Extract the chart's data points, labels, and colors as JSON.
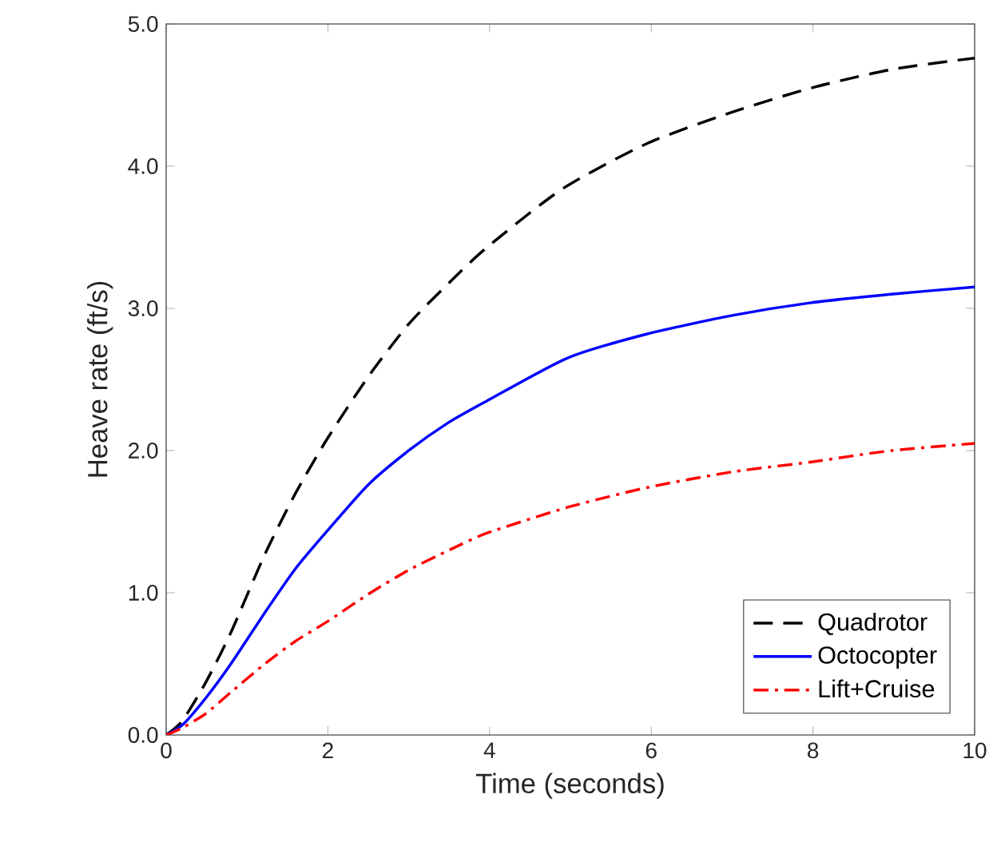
{
  "chart_data": {
    "type": "line",
    "xlabel": "Time (seconds)",
    "ylabel": "Heave rate (ft/s)",
    "xlim": [
      0,
      10
    ],
    "ylim": [
      0,
      5
    ],
    "xticks": [
      0,
      2,
      4,
      6,
      8,
      10
    ],
    "yticks": [
      {
        "value": 0,
        "label": "0.0"
      },
      {
        "value": 1,
        "label": "1.0"
      },
      {
        "value": 2,
        "label": "2.0"
      },
      {
        "value": 3,
        "label": "3.0"
      },
      {
        "value": 4,
        "label": "4.0"
      },
      {
        "value": 5,
        "label": "5.0"
      }
    ],
    "grid": false,
    "legend": "bottom right",
    "series": [
      {
        "name": "Quadrotor",
        "color": "#000000",
        "line_style": "dashed",
        "x": [
          0,
          0.2,
          0.49,
          0.8,
          1.22,
          1.6,
          2.0,
          2.5,
          3.0,
          3.5,
          3.97,
          4.9,
          5.95,
          7.0,
          7.98,
          8.97,
          10
        ],
        "values": [
          0,
          0.1,
          0.37,
          0.72,
          1.27,
          1.7,
          2.09,
          2.52,
          2.89,
          3.18,
          3.43,
          3.84,
          4.16,
          4.38,
          4.55,
          4.68,
          4.76
        ]
      },
      {
        "name": "Octocopter",
        "color": "#0000ff",
        "line_style": "solid",
        "x": [
          0,
          0.2,
          0.49,
          0.8,
          1.22,
          1.6,
          2.0,
          2.5,
          3.0,
          3.5,
          3.97,
          4.96,
          5.95,
          7.0,
          7.98,
          8.97,
          10
        ],
        "values": [
          0,
          0.07,
          0.26,
          0.5,
          0.86,
          1.17,
          1.44,
          1.76,
          2.0,
          2.2,
          2.35,
          2.65,
          2.82,
          2.95,
          3.04,
          3.1,
          3.15
        ]
      },
      {
        "name": "Lift+Cruise",
        "color": "#ff0000",
        "line_style": "dashdotted",
        "x": [
          0,
          0.2,
          0.49,
          0.8,
          1.22,
          1.6,
          2.0,
          2.5,
          3.0,
          3.5,
          3.97,
          4.96,
          5.95,
          7.0,
          7.98,
          8.97,
          10
        ],
        "values": [
          0,
          0.05,
          0.15,
          0.3,
          0.5,
          0.66,
          0.8,
          0.99,
          1.16,
          1.3,
          1.42,
          1.6,
          1.74,
          1.85,
          1.92,
          2.0,
          2.05
        ]
      }
    ]
  }
}
